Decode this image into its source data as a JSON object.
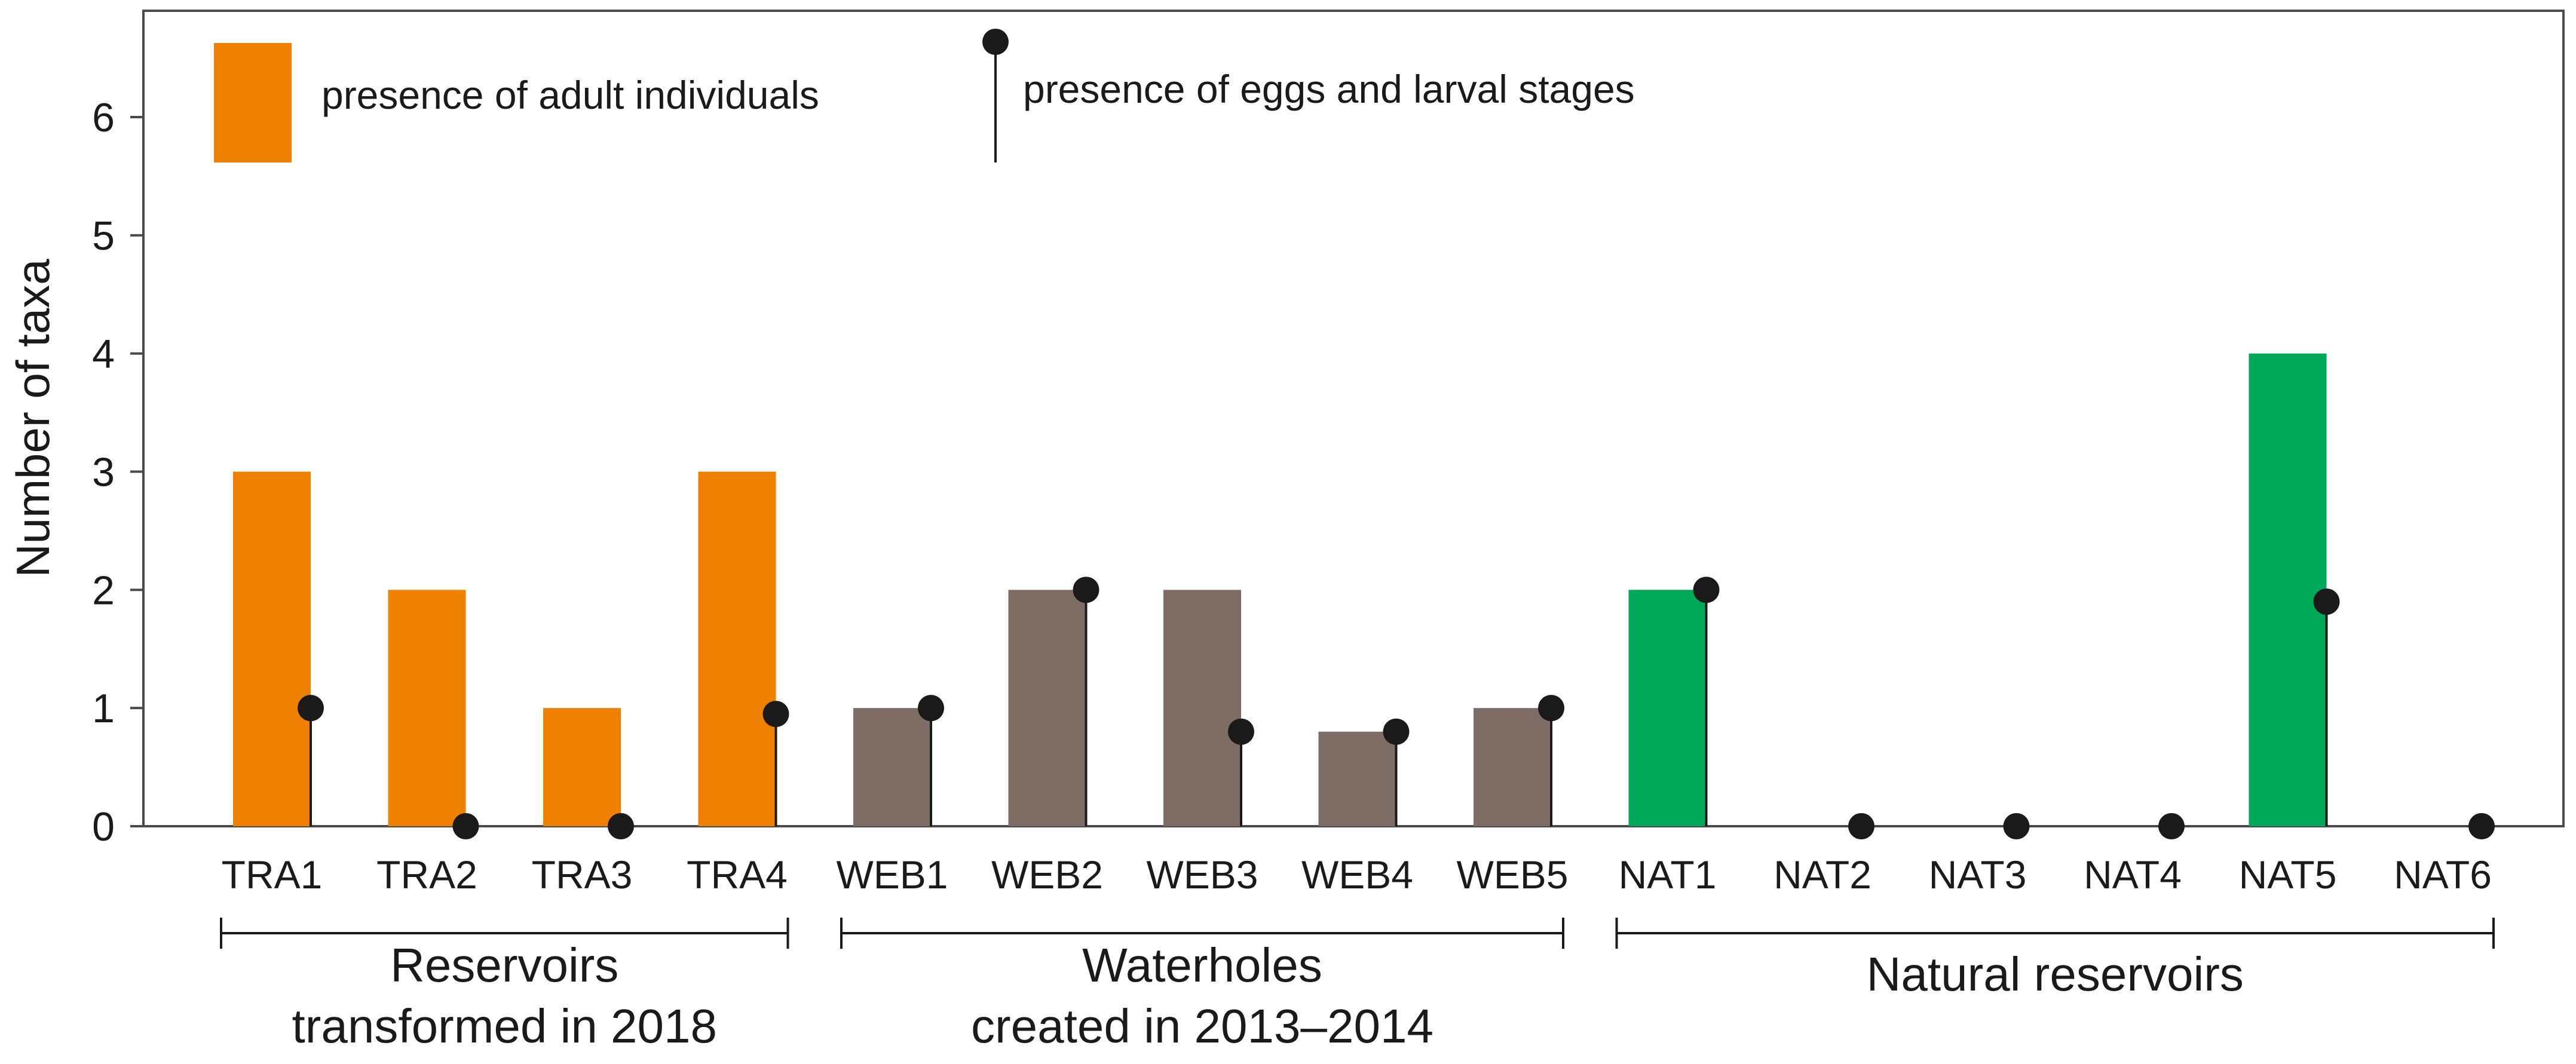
{
  "chart_data": {
    "type": "bar",
    "categories": [
      "TRA1",
      "TRA2",
      "TRA3",
      "TRA4",
      "WEB1",
      "WEB2",
      "WEB3",
      "WEB4",
      "WEB5",
      "NAT1",
      "NAT2",
      "NAT3",
      "NAT4",
      "NAT5",
      "NAT6"
    ],
    "series": [
      {
        "name": "presence of adult individuals",
        "kind": "bar",
        "values": [
          3,
          2,
          1,
          3,
          1,
          2,
          2,
          0.8,
          1,
          2,
          0,
          0,
          0,
          4,
          0
        ]
      },
      {
        "name": "presence of eggs and larval stages",
        "kind": "lollipop",
        "values": [
          1,
          0,
          0,
          0.95,
          1,
          2,
          0.8,
          0.8,
          1,
          2,
          0,
          0,
          0,
          1.9,
          0
        ]
      }
    ],
    "group_of": [
      0,
      0,
      0,
      0,
      1,
      1,
      1,
      1,
      1,
      2,
      2,
      2,
      2,
      2,
      2
    ],
    "groups": [
      {
        "line1": "Reservoirs",
        "line2": "transformed  in 2018",
        "first": 0,
        "last": 3,
        "color": "#F08000"
      },
      {
        "line1": "Waterholes",
        "line2": "created in 2013–2014",
        "first": 4,
        "last": 8,
        "color": "#7D6D64"
      },
      {
        "line1": "Natural reservoirs",
        "line2": "",
        "first": 9,
        "last": 14,
        "color": "#00A85A"
      }
    ],
    "ylabel": "Number of taxa",
    "ylim": [
      0,
      6.9
    ],
    "yticks": [
      0,
      1,
      2,
      3,
      4,
      5,
      6
    ],
    "legend_position": "top-left"
  }
}
